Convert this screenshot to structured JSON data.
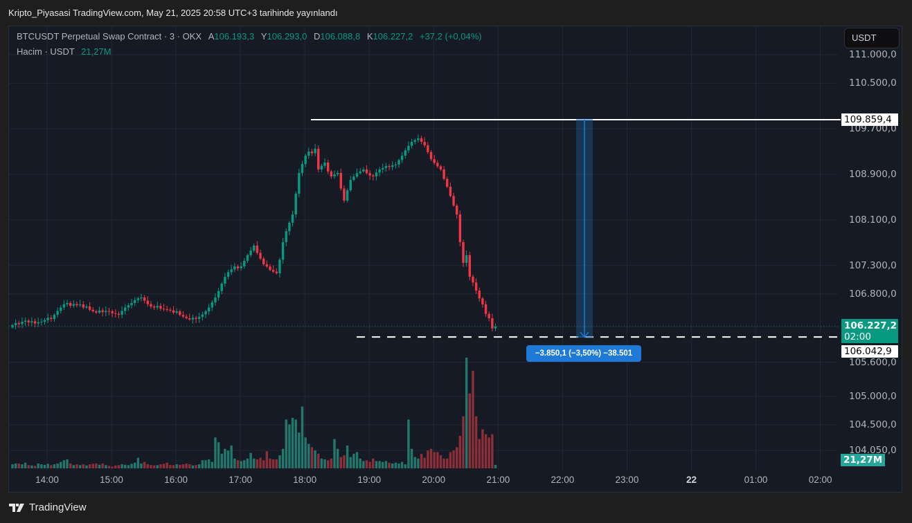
{
  "published": "Kripto_Piyasasi TradingView.com, May 21, 2025 20:58 UTC+3 tarihinde yayınlandı",
  "legend": {
    "symbol": "BTCUSDT Perpetual Swap Contract · 3 · OKX",
    "open_label": "A",
    "open": "106.193,3",
    "high_label": "Y",
    "high": "106.293,0",
    "low_label": "D",
    "low": "106.088,8",
    "close_label": "K",
    "close": "106.227,2",
    "change": "+37,2 (+0,04%)",
    "volume_label": "Hacim · USDT",
    "volume": "21,27M"
  },
  "currency_button": "USDT",
  "price_axis": [
    "111.000,0",
    "110.500,0",
    "109.700,0",
    "108.900,0",
    "108.100,0",
    "107.300,0",
    "106.800,0",
    "105.600,0",
    "105.000,0",
    "104.500,0",
    "104.050,0"
  ],
  "time_axis": [
    "14:00",
    "15:00",
    "16:00",
    "17:00",
    "18:00",
    "19:00",
    "20:00",
    "21:00",
    "22:00",
    "23:00",
    "22",
    "01:00",
    "02:00"
  ],
  "tags": {
    "high_line": "109.859,4",
    "current_price": "106.227,2",
    "countdown": "02:00",
    "low_line": "106.042,9",
    "volume": "21,27M"
  },
  "measure_label": "−3.850,1 (−3,50%) −38.501",
  "brand": "TradingView",
  "colors": {
    "up": "#089981",
    "down": "#f23645",
    "measure": "#1e7ad6",
    "background": "#161a25"
  },
  "chart_data": {
    "type": "candlestick",
    "interval_minutes": 3,
    "start_time": "13:27",
    "price_range": [
      103900,
      111300
    ],
    "horizontal_lines": [
      109859.4,
      106042.9
    ],
    "measure": {
      "from": 109859.4,
      "to": 106042.9,
      "change": -3850.1,
      "percent": -3.5,
      "ticks": -38501
    },
    "closes": [
      106250,
      106290,
      106270,
      106311,
      106330,
      106300,
      106320,
      106280,
      106300,
      106311,
      106340,
      106380,
      106360,
      106433,
      106500,
      106560,
      106615,
      106640,
      106590,
      106620,
      106600,
      106615,
      106560,
      106580,
      106520,
      106494,
      106470,
      106510,
      106480,
      106500,
      106494,
      106460,
      106450,
      106433,
      106500,
      106560,
      106600,
      106640,
      106690,
      106720,
      106737,
      106680,
      106620,
      106579,
      106560,
      106590,
      106540,
      106530,
      106520,
      106510,
      106470,
      106494,
      106430,
      106400,
      106372,
      106350,
      106380,
      106360,
      106396,
      106440,
      106494,
      106560,
      106650,
      106737,
      106850,
      106980,
      107101,
      107180,
      107230,
      107283,
      107250,
      107283,
      107380,
      107480,
      107560,
      107648,
      107520,
      107420,
      107320,
      107280,
      107220,
      107190,
      107162,
      107400,
      107709,
      107900,
      108050,
      108195,
      108560,
      108924,
      109080,
      109228,
      109300,
      109270,
      109349,
      108985,
      109050,
      109106,
      108950,
      108863,
      108900,
      108924,
      108650,
      108438,
      108620,
      108802,
      108860,
      108920,
      108950,
      108985,
      108920,
      108880,
      108863,
      108930,
      108985,
      109010,
      109046,
      109030,
      109060,
      109070,
      109150,
      109228,
      109320,
      109400,
      109471,
      109500,
      109532,
      109470,
      109410,
      109290,
      109167,
      109100,
      109040,
      108985,
      108820,
      108681,
      108520,
      108350,
      108195,
      107709,
      107344,
      107480,
      107101,
      107000,
      106858,
      106720,
      106615,
      106450,
      106372,
      106193,
      106227.2
    ],
    "volume_millions": [
      25,
      30,
      30,
      25,
      35,
      20,
      18,
      15,
      30,
      25,
      22,
      28,
      20,
      25,
      30,
      40,
      50,
      55,
      30,
      20,
      25,
      20,
      25,
      18,
      25,
      28,
      30,
      22,
      30,
      20,
      15,
      12,
      18,
      20,
      25,
      22,
      20,
      28,
      35,
      65,
      30,
      40,
      25,
      20,
      18,
      20,
      25,
      28,
      35,
      20,
      20,
      25,
      22,
      25,
      30,
      25,
      18,
      20,
      25,
      50,
      50,
      55,
      40,
      190,
      160,
      90,
      120,
      110,
      140,
      60,
      50,
      45,
      50,
      60,
      95,
      60,
      55,
      65,
      50,
      105,
      60,
      55,
      55,
      80,
      120,
      300,
      270,
      310,
      300,
      220,
      380,
      190,
      150,
      130,
      110,
      90,
      60,
      55,
      50,
      60,
      180,
      120,
      70,
      80,
      140,
      70,
      90,
      100,
      60,
      45,
      50,
      40,
      60,
      45,
      45,
      40,
      45,
      35,
      30,
      35,
      30,
      40,
      25,
      300,
      120,
      70,
      60,
      90,
      65,
      110,
      120,
      100,
      100,
      80,
      60,
      60,
      100,
      110,
      130,
      200,
      320,
      680,
      460,
      600,
      320,
      180,
      240,
      210,
      190,
      210,
      21.27
    ]
  }
}
